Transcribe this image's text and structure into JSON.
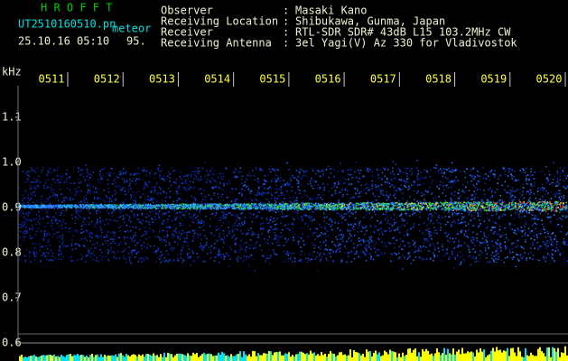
{
  "header": {
    "app": "H R O F F T",
    "file": "UT2510160510.pn",
    "mode": "meteor",
    "datetime": "25.10.16 05:10",
    "number": "95.",
    "fields": [
      {
        "label": "Observer",
        "value": "Masaki Kano"
      },
      {
        "label": "Receiving Location",
        "value": "Shibukawa, Gunma, Japan"
      },
      {
        "label": "Receiver",
        "value": "RTL-SDR SDR# 43dB L15 103.2MHz CW"
      },
      {
        "label": "Receiving Antenna",
        "value": "3el Yagi(V) Az 330 for Vladivostok"
      }
    ]
  },
  "axis": {
    "unit": "kHz",
    "ylim": [
      0.6,
      1.17
    ],
    "yticks": [
      1.1,
      {
        "value": 1,
        "label": "1.0"
      },
      0.9,
      0.8,
      0.7,
      0.6
    ],
    "xlabels": [
      "0511",
      "0512",
      "0513",
      "0514",
      "0515",
      "0516",
      "0517",
      "0518",
      "0519",
      "0520"
    ]
  }
}
